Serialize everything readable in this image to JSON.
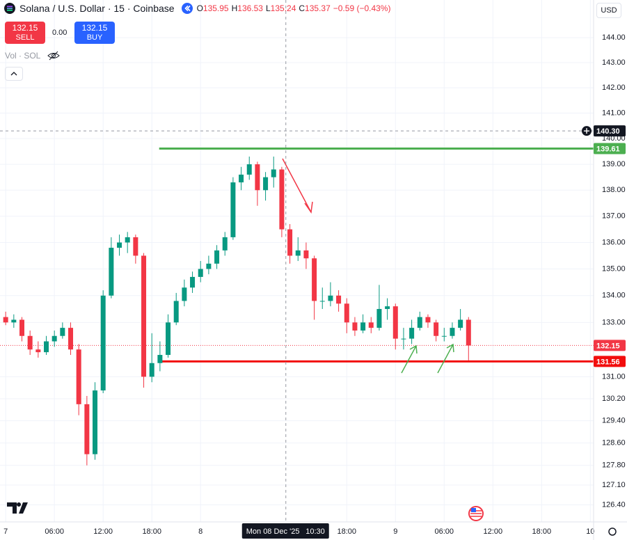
{
  "chart_data": {
    "type": "candlestick",
    "title": "Solana / U.S. Dollar · 15 · Coinbase",
    "legend": [
      {
        "key": "O",
        "value": 135.95
      },
      {
        "key": "H",
        "value": 136.53
      },
      {
        "key": "L",
        "value": 135.24
      },
      {
        "key": "C",
        "value": 135.37
      }
    ],
    "change": "−0.59 (−0.43%)",
    "sell": {
      "label": "SELL",
      "value": 132.15
    },
    "buy": {
      "label": "BUY",
      "value": 132.15
    },
    "spread": {
      "value": 0,
      "label": "0.00"
    },
    "volume_label": "Vol · SOL",
    "currency": "USD",
    "x": [
      0,
      1,
      2,
      3,
      4,
      5,
      6,
      7,
      8,
      9,
      10,
      11,
      12,
      13,
      14,
      15,
      16,
      17,
      18,
      19,
      20,
      21,
      22,
      23,
      24,
      25,
      26,
      27,
      28,
      29,
      30,
      31,
      32,
      33,
      34,
      35,
      36,
      37,
      38,
      39,
      40,
      41,
      42,
      43,
      44,
      45,
      46,
      47,
      48,
      49,
      50,
      51,
      52,
      53,
      54,
      55,
      56,
      57
    ],
    "open": [
      133.2,
      133.0,
      133.1,
      132.5,
      132.0,
      131.9,
      132.3,
      132.5,
      132.8,
      132.0,
      130.0,
      128.2,
      130.5,
      134.0,
      135.8,
      136.0,
      136.2,
      135.5,
      131.0,
      131.5,
      131.8,
      133.0,
      133.8,
      134.3,
      134.7,
      135.0,
      135.2,
      135.7,
      136.2,
      138.3,
      138.6,
      139.0,
      138.0,
      138.5,
      138.8,
      136.5,
      135.5,
      135.7,
      135.4,
      133.8,
      133.8,
      134.0,
      133.7,
      133.0,
      132.7,
      133.0,
      132.8,
      133.5,
      133.6,
      132.4,
      132.4,
      132.8,
      133.2,
      133.0,
      132.5,
      132.5,
      132.8,
      133.1
    ],
    "high": [
      133.4,
      133.3,
      133.2,
      132.7,
      132.3,
      132.5,
      132.7,
      133.0,
      133.0,
      132.2,
      130.3,
      130.8,
      134.2,
      136.2,
      136.3,
      136.4,
      136.3,
      135.6,
      132.6,
      132.3,
      133.3,
      134.1,
      134.6,
      134.9,
      135.3,
      135.5,
      135.9,
      136.4,
      138.5,
      138.9,
      139.3,
      139.1,
      138.7,
      139.3,
      138.9,
      136.7,
      136.2,
      136.0,
      135.5,
      134.3,
      134.5,
      134.2,
      133.9,
      133.2,
      133.3,
      133.2,
      134.4,
      133.9,
      133.7,
      132.8,
      133.1,
      133.4,
      133.3,
      133.1,
      132.8,
      133.0,
      133.5,
      133.2
    ],
    "low": [
      132.9,
      132.8,
      132.3,
      131.8,
      131.7,
      131.8,
      132.1,
      132.4,
      131.8,
      129.6,
      127.8,
      128.0,
      130.4,
      133.9,
      135.5,
      135.6,
      135.2,
      130.6,
      130.8,
      131.2,
      131.7,
      132.9,
      133.6,
      134.1,
      134.5,
      134.8,
      135.0,
      135.5,
      136.1,
      138.0,
      138.4,
      137.4,
      137.6,
      138.1,
      136.2,
      135.2,
      135.3,
      135.0,
      133.1,
      133.5,
      133.6,
      133.4,
      132.6,
      132.5,
      132.6,
      132.6,
      132.7,
      133.1,
      132.0,
      132.0,
      132.2,
      132.7,
      132.8,
      132.3,
      132.3,
      132.4,
      132.7,
      131.6
    ],
    "close": [
      133.0,
      133.1,
      132.5,
      132.0,
      131.9,
      132.3,
      132.5,
      132.8,
      132.0,
      130.0,
      128.2,
      130.5,
      134.0,
      135.8,
      136.0,
      136.2,
      135.5,
      131.0,
      131.5,
      131.8,
      133.0,
      133.8,
      134.3,
      134.7,
      135.0,
      135.2,
      135.7,
      136.2,
      138.3,
      138.6,
      139.0,
      138.0,
      138.5,
      138.8,
      136.5,
      135.5,
      135.7,
      135.4,
      133.8,
      133.8,
      134.0,
      133.7,
      133.0,
      132.7,
      133.0,
      132.8,
      133.5,
      133.6,
      132.4,
      132.4,
      132.8,
      133.2,
      133.0,
      132.5,
      132.5,
      132.8,
      133.1,
      132.15
    ],
    "up_color": "#089981",
    "down_color": "#f23645",
    "log_scale": true,
    "grid": true,
    "xlim": [
      -0.7,
      72.4
    ],
    "ylim": [
      125.8,
      145.52
    ],
    "yticks": [
      {
        "value": 144,
        "label": "144.00"
      },
      {
        "value": 143,
        "label": "143.00"
      },
      {
        "value": 142,
        "label": "142.00"
      },
      {
        "value": 141,
        "label": "141.00"
      },
      {
        "value": 140,
        "label": "140.00"
      },
      {
        "value": 139,
        "label": "139.00"
      },
      {
        "value": 138,
        "label": "138.00"
      },
      {
        "value": 137,
        "label": "137.00"
      },
      {
        "value": 136,
        "label": "136.00"
      },
      {
        "value": 135,
        "label": "135.00"
      },
      {
        "value": 134,
        "label": "134.00"
      },
      {
        "value": 133,
        "label": "133.00"
      },
      {
        "value": 131,
        "label": "131.00"
      },
      {
        "value": 130.2,
        "label": "130.20"
      },
      {
        "value": 129.4,
        "label": "129.40"
      },
      {
        "value": 128.6,
        "label": "128.60"
      },
      {
        "value": 127.8,
        "label": "127.80"
      },
      {
        "value": 127.1,
        "label": "127.10"
      },
      {
        "value": 126.4,
        "label": "126.40"
      }
    ],
    "xticks": [
      {
        "value": 0,
        "label": "7"
      },
      {
        "value": 6,
        "label": "06:00"
      },
      {
        "value": 12,
        "label": "12:00"
      },
      {
        "value": 18,
        "label": "18:00"
      },
      {
        "value": 24,
        "label": "8"
      },
      {
        "value": 42,
        "label": "18:00"
      },
      {
        "value": 48,
        "label": "9"
      },
      {
        "value": 54,
        "label": "06:00"
      },
      {
        "value": 60,
        "label": "12:00"
      },
      {
        "value": 66,
        "label": "18:00"
      },
      {
        "value": 72,
        "label": "10"
      }
    ],
    "levels": [
      {
        "value": 139.61,
        "from_x": 18.9,
        "color": "#4caf50"
      },
      {
        "value": 131.56,
        "from_x": 18.9,
        "color": "#f20d0d"
      }
    ],
    "last_price": {
      "value": 132.15,
      "color": "#f23645"
    },
    "crosshair": {
      "x": 34.5,
      "y": {
        "value": 140.3,
        "label": "140.30"
      },
      "date_label": "Mon 08 Dec '25",
      "time_label": "10:30"
    }
  }
}
